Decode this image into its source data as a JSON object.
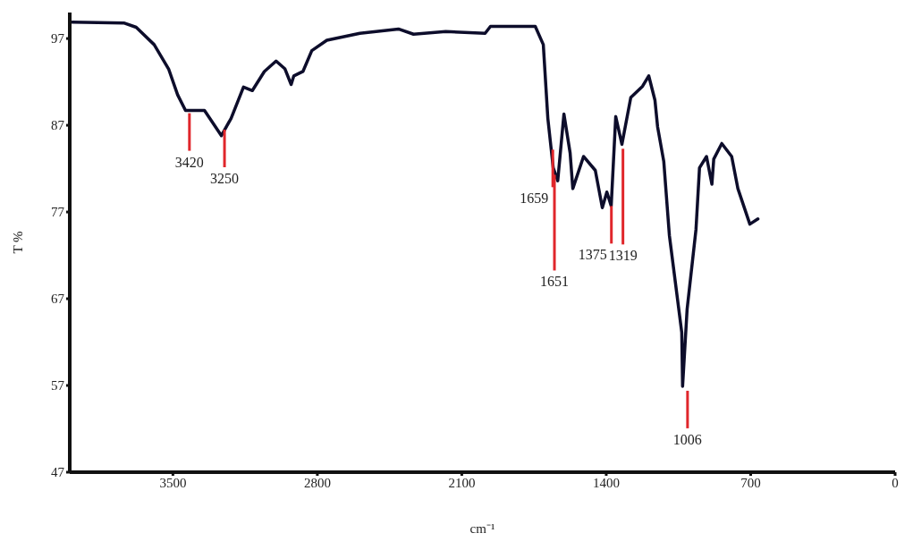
{
  "chart_data": {
    "type": "line",
    "xlabel": "cm⁻¹",
    "ylabel": "T %",
    "xlim": [
      4000,
      0
    ],
    "xticks": [
      3500,
      2800,
      2100,
      1400,
      700,
      0
    ],
    "ylim": [
      47,
      100
    ],
    "yticks": [
      47,
      57,
      67,
      77,
      87,
      97
    ],
    "grid": false,
    "marker": "none",
    "line_style": "solid",
    "x": [
      3989,
      3738,
      3678,
      3591,
      3521,
      3477,
      3439,
      3347,
      3265,
      3218,
      3158,
      3115,
      3057,
      3000,
      2957,
      2927,
      2914,
      2870,
      2827,
      2754,
      2594,
      2407,
      2334,
      2178,
      1987,
      1961,
      1744,
      1705,
      1683,
      1657,
      1635,
      1605,
      1575,
      1562,
      1510,
      1453,
      1419,
      1397,
      1376,
      1354,
      1324,
      1281,
      1224,
      1194,
      1164,
      1151,
      1121,
      1094,
      1034,
      1030,
      1008,
      965,
      948,
      914,
      888,
      879,
      840,
      792,
      762,
      704,
      665
    ],
    "series": [
      {
        "color": "#0d0d2b",
        "values": [
          98.9,
          98.8,
          98.3,
          96.3,
          93.5,
          90.5,
          88.7,
          88.7,
          85.8,
          87.8,
          91.4,
          91.0,
          93.2,
          94.4,
          93.5,
          91.7,
          92.7,
          93.2,
          95.6,
          96.8,
          97.6,
          98.1,
          97.5,
          97.8,
          97.6,
          98.4,
          98.4,
          96.3,
          87.8,
          82.1,
          80.6,
          88.3,
          83.8,
          79.7,
          83.4,
          81.8,
          77.5,
          79.3,
          77.7,
          88.0,
          84.8,
          90.2,
          91.5,
          92.7,
          89.9,
          86.8,
          82.8,
          74.3,
          63.1,
          56.9,
          65.8,
          75.0,
          82.1,
          83.4,
          80.2,
          83.1,
          84.9,
          83.4,
          79.7,
          75.6,
          76.2
        ]
      }
    ],
    "annotations": [
      {
        "text": "3420",
        "x": 3420,
        "y": 88.7
      },
      {
        "text": "3250",
        "x": 3250,
        "y": 86.8
      },
      {
        "text": "1659",
        "x": 1659,
        "y": 84.5
      },
      {
        "text": "1651",
        "x": 1651,
        "y": 81.6
      },
      {
        "text": "1375",
        "x": 1375,
        "y": 78
      },
      {
        "text": "1319",
        "x": 1319,
        "y": 84.6
      },
      {
        "text": "1006",
        "x": 1006,
        "y": 56.7
      }
    ]
  }
}
